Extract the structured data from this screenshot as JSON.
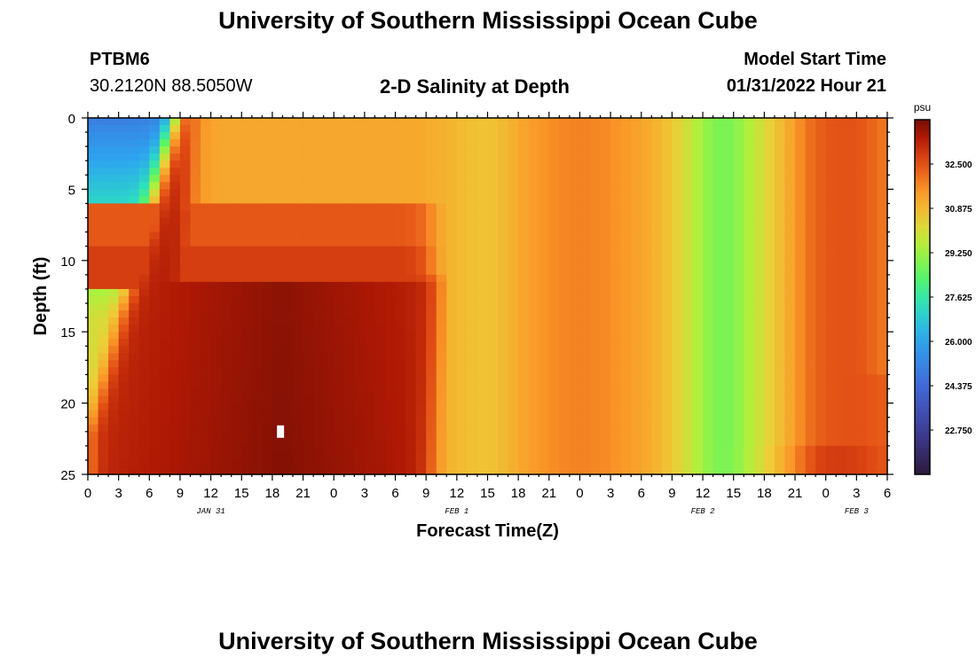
{
  "page": {
    "title_top": "University of Southern Mississippi Ocean Cube",
    "title_bottom": "University of Southern Mississippi Ocean Cube",
    "station_id": "PTBM6",
    "station_coords": "30.2120N  88.5050W",
    "chart_heading": "2-D Salinity at Depth",
    "model_start_label": "Model Start Time",
    "model_start_value": "01/31/2022 Hour 21"
  },
  "chart_data": {
    "type": "heatmap",
    "title": "2-D Salinity at Depth",
    "xlabel": "Forecast Time(Z)",
    "ylabel": "Depth (ft)",
    "x_range_hours_since_jan31_00Z": [
      0,
      78
    ],
    "y_range_ft": [
      0,
      25
    ],
    "y_ticks": [
      "0",
      "5",
      "10",
      "15",
      "20",
      "25"
    ],
    "x_ticks": [
      "0",
      "3",
      "6",
      "9",
      "12",
      "15",
      "18",
      "21",
      "0",
      "3",
      "6",
      "9",
      "12",
      "15",
      "18",
      "21",
      "0",
      "3",
      "6",
      "9",
      "12",
      "15",
      "18",
      "21",
      "0",
      "3",
      "6"
    ],
    "date_labels": [
      {
        "label": "JAN 31",
        "hour": 12
      },
      {
        "label": "FEB 1",
        "hour": 36
      },
      {
        "label": "FEB 2",
        "hour": 60
      },
      {
        "label": "FEB 3",
        "hour": 75
      }
    ],
    "colorbar": {
      "unit": "psu",
      "range": [
        21.125,
        34.125
      ],
      "ticks": [
        "32.500",
        "30.875",
        "29.250",
        "27.625",
        "26.000",
        "24.375",
        "22.750"
      ]
    },
    "marker": {
      "hour": 18.8,
      "depth_ft": 22
    }
  }
}
